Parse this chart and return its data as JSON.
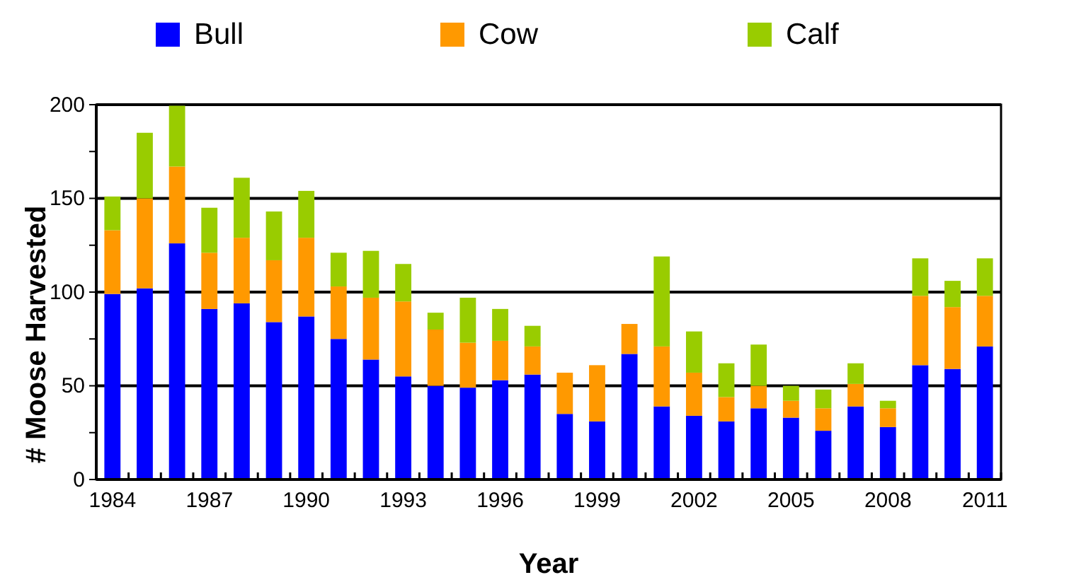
{
  "chart_data": {
    "type": "bar",
    "stacked": true,
    "xlabel": "Year",
    "ylabel": "# Moose Harvested",
    "categories": [
      "1984",
      null,
      null,
      "1987",
      null,
      null,
      "1990",
      null,
      null,
      "1993",
      null,
      null,
      "1996",
      null,
      null,
      "1999",
      null,
      null,
      "2002",
      null,
      null,
      "2005",
      null,
      null,
      "2008",
      null,
      null,
      "2011"
    ],
    "series": [
      {
        "name": "Bull",
        "color": "#0000ff",
        "values": [
          99,
          102,
          126,
          91,
          94,
          84,
          87,
          75,
          64,
          55,
          50,
          49,
          53,
          56,
          35,
          31,
          67,
          39,
          34,
          31,
          38,
          33,
          26,
          39,
          28,
          61,
          59,
          71
        ]
      },
      {
        "name": "Cow",
        "color": "#ff9900",
        "values": [
          34,
          48,
          41,
          30,
          35,
          33,
          42,
          28,
          33,
          40,
          30,
          24,
          21,
          15,
          22,
          30,
          16,
          32,
          23,
          13,
          12,
          9,
          12,
          12,
          10,
          37,
          33,
          27
        ]
      },
      {
        "name": "Calf",
        "color": "#99cc00",
        "values": [
          18,
          35,
          33,
          24,
          32,
          26,
          25,
          18,
          25,
          20,
          9,
          24,
          17,
          11,
          0,
          0,
          0,
          48,
          22,
          18,
          22,
          8,
          10,
          11,
          4,
          20,
          14,
          20
        ]
      }
    ],
    "ylim": [
      0,
      200
    ],
    "yticks": [
      0,
      {
        "value": 25,
        "label": null
      },
      50,
      {
        "value": 75,
        "label": null
      },
      100,
      {
        "value": 125,
        "label": null
      },
      150,
      {
        "value": 175,
        "label": null
      },
      200
    ],
    "grid": "y",
    "legend": "top"
  }
}
